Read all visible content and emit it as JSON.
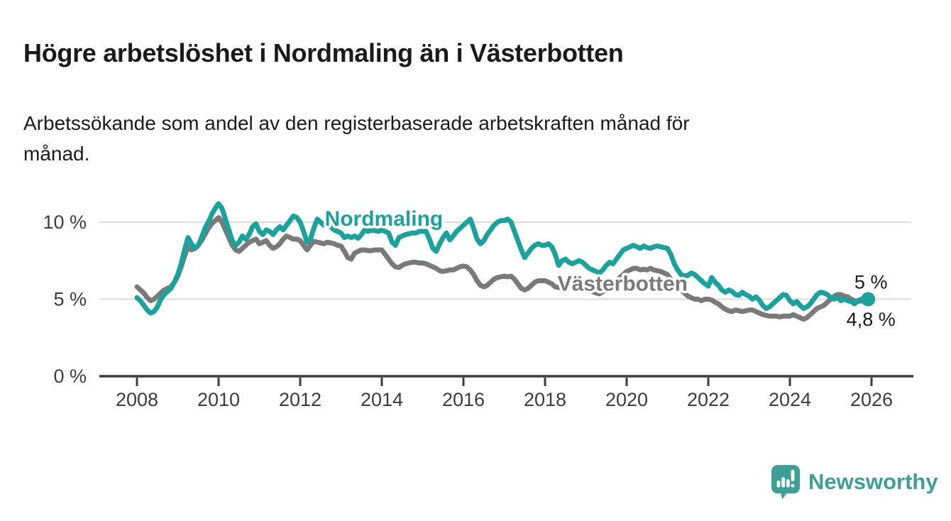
{
  "header": {
    "title": "Högre arbetslöshet i Nordmaling än i Västerbotten",
    "subtitle": "Arbetssökande som andel av den registerbaserade arbetskraften månad för månad."
  },
  "logo": {
    "name": "Newsworthy",
    "icon": "newsworthy-speech-bubble-bar-chart-icon",
    "color": "#3DA097"
  },
  "chart_data": {
    "type": "line",
    "title": "Högre arbetslöshet i Nordmaling än i Västerbotten",
    "xlabel": "",
    "ylabel": "",
    "xlim": [
      2007.1,
      2027.0
    ],
    "ylim": [
      0,
      12
    ],
    "grid": "horizontal-only",
    "gridlines": [
      5,
      10
    ],
    "legend_position": "inline-labels-on-lines",
    "x_ticks": [
      {
        "year": 2008,
        "label": "2008"
      },
      {
        "year": 2010,
        "label": "2010"
      },
      {
        "year": 2012,
        "label": "2012"
      },
      {
        "year": 2014,
        "label": "2014"
      },
      {
        "year": 2016,
        "label": "2016"
      },
      {
        "year": 2018,
        "label": "2018"
      },
      {
        "year": 2020,
        "label": "2020"
      },
      {
        "year": 2022,
        "label": "2022"
      },
      {
        "year": 2024,
        "label": "2024"
      },
      {
        "year": 2026,
        "label": "2026"
      }
    ],
    "y_ticks": [
      {
        "value": 0,
        "label": "0 %"
      },
      {
        "value": 5,
        "label": "5 %"
      },
      {
        "value": 10,
        "label": "10 %"
      }
    ],
    "style": {
      "grid_color": "#DBDBDB",
      "axis_color": "#3C3C3C",
      "line_width": 7,
      "background": "#FFFFFF"
    },
    "series": [
      {
        "id": "vasterbotten",
        "name": "Västerbotten",
        "color": "#7A7A7A",
        "start_year": 2008,
        "frequency": "monthly",
        "label_pos": {
          "x": 2019.9,
          "y": 6.0
        },
        "end_label": "4,8 %",
        "end_label_offset": {
          "dx": 4,
          "dy": 33
        },
        "end_dot": false,
        "values_monthly": [
          5.8,
          5.6,
          5.4,
          5.1,
          4.9,
          5.0,
          5.2,
          5.4,
          5.6,
          5.7,
          5.8,
          6.1,
          6.5,
          7.1,
          7.8,
          8.4,
          8.2,
          8.3,
          8.5,
          8.8,
          9.2,
          9.6,
          9.9,
          10.1,
          10.3,
          10.0,
          9.5,
          9.0,
          8.5,
          8.2,
          8.1,
          8.3,
          8.5,
          8.7,
          8.8,
          8.9,
          8.6,
          8.7,
          8.8,
          8.5,
          8.3,
          8.4,
          8.6,
          8.9,
          9.1,
          9.0,
          8.9,
          8.9,
          8.8,
          8.5,
          8.2,
          8.5,
          8.75,
          8.7,
          8.65,
          8.6,
          8.7,
          8.65,
          8.6,
          8.5,
          8.45,
          8.1,
          7.7,
          7.6,
          8.0,
          8.1,
          8.2,
          8.2,
          8.15,
          8.15,
          8.2,
          8.2,
          8.2,
          7.9,
          7.6,
          7.3,
          7.1,
          7.05,
          7.2,
          7.3,
          7.35,
          7.4,
          7.4,
          7.35,
          7.35,
          7.3,
          7.2,
          7.1,
          7.0,
          6.85,
          6.8,
          6.85,
          6.9,
          6.9,
          7.0,
          7.1,
          7.15,
          7.1,
          6.9,
          6.6,
          6.2,
          5.9,
          5.8,
          5.9,
          6.1,
          6.3,
          6.4,
          6.45,
          6.5,
          6.45,
          6.5,
          6.3,
          6.0,
          5.7,
          5.6,
          5.7,
          5.9,
          6.1,
          6.2,
          6.2,
          6.2,
          6.1,
          6.0,
          5.8,
          5.75,
          5.8,
          5.75,
          5.8,
          5.9,
          6.0,
          6.1,
          6.05,
          5.9,
          5.7,
          5.5,
          5.4,
          5.35,
          5.5,
          5.6,
          5.8,
          6.0,
          6.2,
          6.4,
          6.6,
          6.8,
          6.9,
          7.0,
          7.0,
          6.9,
          6.95,
          6.9,
          7.0,
          6.9,
          6.85,
          6.8,
          6.7,
          6.6,
          6.3,
          6.0,
          5.8,
          5.6,
          5.4,
          5.2,
          5.1,
          5.0,
          5.0,
          4.9,
          5.0,
          5.0,
          4.95,
          4.8,
          4.7,
          4.5,
          4.35,
          4.25,
          4.2,
          4.3,
          4.25,
          4.2,
          4.25,
          4.3,
          4.3,
          4.2,
          4.1,
          4.0,
          3.95,
          3.9,
          3.9,
          3.9,
          3.85,
          3.9,
          3.9,
          3.9,
          4.0,
          3.9,
          3.8,
          3.7,
          3.8,
          4.0,
          4.2,
          4.4,
          4.5,
          4.6,
          4.8,
          5.0,
          5.2,
          5.3,
          5.3,
          5.2,
          5.15,
          5.0,
          4.9,
          4.85,
          4.9,
          4.85,
          4.8
        ]
      },
      {
        "id": "nordmaling",
        "name": "Nordmaling",
        "color": "#1AA39C",
        "start_year": 2008,
        "frequency": "monthly",
        "label_pos": {
          "x": 2014.05,
          "y": 10.2
        },
        "end_label": "5 %",
        "end_label_offset": {
          "dx": 4,
          "dy": -15
        },
        "end_dot": true,
        "values_monthly": [
          5.1,
          4.9,
          4.6,
          4.3,
          4.1,
          4.2,
          4.5,
          5.0,
          5.3,
          5.5,
          5.7,
          6.1,
          6.6,
          7.3,
          8.2,
          9.0,
          8.6,
          8.3,
          8.5,
          9.0,
          9.6,
          10.0,
          10.5,
          10.9,
          11.2,
          10.9,
          10.2,
          9.5,
          8.8,
          8.5,
          8.7,
          9.1,
          8.9,
          9.2,
          9.7,
          9.9,
          9.4,
          9.2,
          9.5,
          9.4,
          9.2,
          9.5,
          9.7,
          9.5,
          9.8,
          10.1,
          10.4,
          10.3,
          10.0,
          9.4,
          8.7,
          8.9,
          9.6,
          10.2,
          10.0,
          9.8,
          9.9,
          9.7,
          9.5,
          9.4,
          9.3,
          9.0,
          9.1,
          9.0,
          9.1,
          8.95,
          9.2,
          9.5,
          9.4,
          9.5,
          9.45,
          9.4,
          9.5,
          9.4,
          9.3,
          8.7,
          8.5,
          9.0,
          9.1,
          9.2,
          9.25,
          9.3,
          9.3,
          9.4,
          9.4,
          9.4,
          8.9,
          8.3,
          8.1,
          8.6,
          9.0,
          9.3,
          8.85,
          9.1,
          9.4,
          9.6,
          9.8,
          10.0,
          10.2,
          9.6,
          8.9,
          8.6,
          8.8,
          9.2,
          9.5,
          9.8,
          10.0,
          10.1,
          10.1,
          10.2,
          10.0,
          9.4,
          8.8,
          8.2,
          7.7,
          8.0,
          8.3,
          8.5,
          8.6,
          8.5,
          8.5,
          8.6,
          8.4,
          7.9,
          7.2,
          7.5,
          7.6,
          7.4,
          7.3,
          7.4,
          7.5,
          7.4,
          7.2,
          7.0,
          6.9,
          6.8,
          6.7,
          6.9,
          7.2,
          7.4,
          7.3,
          7.6,
          7.9,
          8.2,
          8.3,
          8.4,
          8.5,
          8.4,
          8.3,
          8.45,
          8.35,
          8.3,
          8.4,
          8.45,
          8.4,
          8.35,
          8.3,
          7.9,
          7.3,
          6.9,
          6.6,
          6.5,
          6.55,
          6.7,
          6.6,
          6.4,
          6.2,
          6.0,
          5.85,
          6.4,
          6.1,
          5.9,
          5.6,
          5.45,
          5.6,
          5.5,
          5.3,
          5.25,
          5.45,
          5.3,
          5.2,
          5.0,
          5.15,
          4.95,
          4.6,
          4.4,
          4.5,
          4.7,
          4.9,
          5.1,
          5.3,
          5.25,
          4.9,
          4.7,
          4.85,
          4.6,
          4.4,
          4.5,
          4.7,
          5.0,
          5.3,
          5.45,
          5.4,
          5.3,
          5.1,
          5.0,
          5.1,
          4.9,
          5.0,
          4.9,
          4.85,
          4.7,
          4.9,
          5.0,
          4.95,
          5.0
        ]
      }
    ]
  }
}
